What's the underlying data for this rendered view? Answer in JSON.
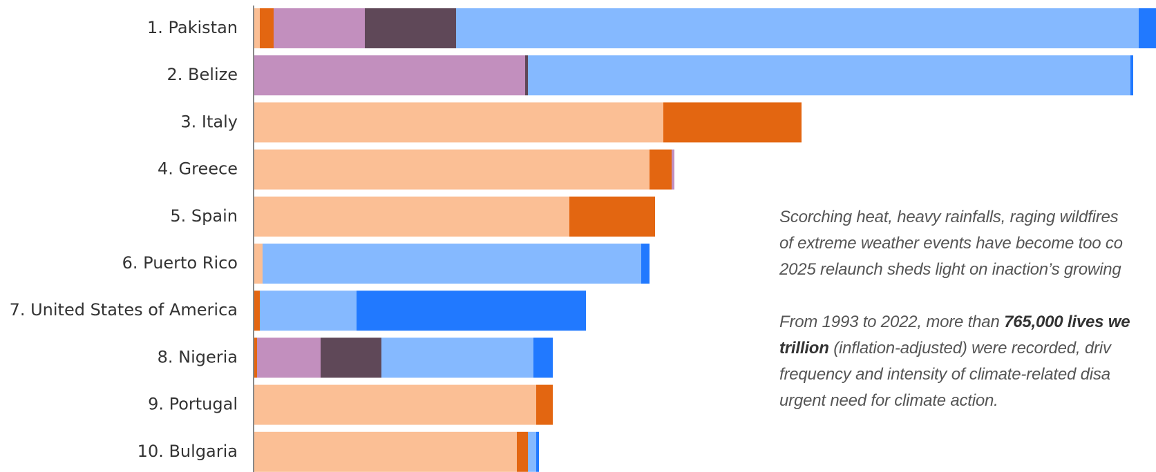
{
  "chart_data": {
    "type": "bar",
    "orientation": "horizontal",
    "stacked": true,
    "categories": [
      "1. Pakistan",
      "2. Belize",
      "3. Italy",
      "4. Greece",
      "5. Spain",
      "6. Puerto Rico",
      "7. United States of America",
      "8. Nigeria",
      "9. Portugal",
      "10. Bulgaria"
    ],
    "series": [
      {
        "color": "#fbbf95",
        "values": [
          2,
          0,
          148,
          143,
          114,
          3,
          0,
          0,
          102,
          95
        ]
      },
      {
        "color": "#e36611",
        "values": [
          5,
          0,
          50,
          8,
          31,
          0,
          2,
          1,
          6,
          4
        ]
      },
      {
        "color": "#c28fbe",
        "values": [
          33,
          98,
          0,
          1,
          0,
          0,
          0,
          23,
          0,
          0
        ]
      },
      {
        "color": "#5f4858",
        "values": [
          33,
          1,
          0,
          0,
          0,
          0,
          0,
          22,
          0,
          0
        ]
      },
      {
        "color": "#85b9ff",
        "values": [
          247,
          218,
          0,
          0,
          0,
          137,
          35,
          55,
          0,
          3
        ]
      },
      {
        "color": "#2179ff",
        "values": [
          30,
          1,
          0,
          0,
          0,
          3,
          83,
          7,
          0,
          1
        ]
      }
    ],
    "xlim": [
      0,
      350
    ],
    "grid": false
  },
  "annotation": {
    "line1": "Scorching heat, heavy rainfalls, raging wildfires",
    "line2": "of extreme weather events have become too co",
    "line3": "2025 relaunch sheds light on inaction’s growing",
    "p2_a": "From 1993 to 2022, more than ",
    "p2_bold1": "765,000 lives we",
    "p2_bold2": "trillion",
    "p2_b": " (inflation-adjusted) were recorded, driv",
    "p2_line3": "frequency and intensity of climate-related disa",
    "p2_line4": "urgent need for climate action."
  }
}
